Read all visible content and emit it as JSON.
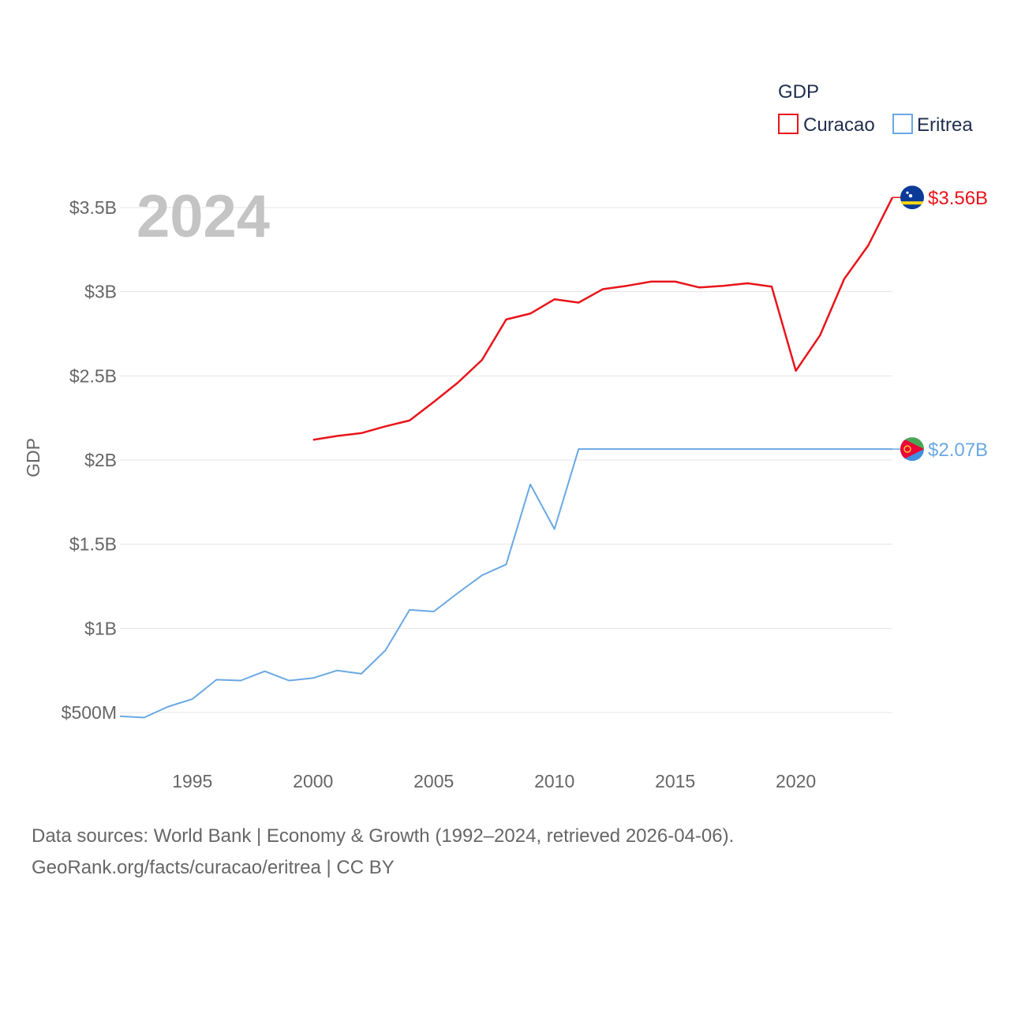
{
  "chart_data": {
    "type": "line",
    "year_label": "2024",
    "ylabel": "GDP",
    "xlabel": "",
    "legend": {
      "title": "GDP",
      "position": "top-right"
    },
    "xlim": [
      1992,
      2024
    ],
    "ylim": [
      350000000,
      3700000000
    ],
    "x_ticks": [
      1995,
      2000,
      2005,
      2010,
      2015,
      2020
    ],
    "x_tick_labels": [
      "1995",
      "2000",
      "2005",
      "2010",
      "2015",
      "2020"
    ],
    "y_ticks": [
      500000000,
      1000000000,
      1500000000,
      2000000000,
      2500000000,
      3000000000,
      3500000000
    ],
    "y_tick_labels": [
      "$500M",
      "$1B",
      "$1.5B",
      "$2B",
      "$2.5B",
      "$3B",
      "$3.5B"
    ],
    "grid": true,
    "series": [
      {
        "name": "Curacao",
        "color": "#e8141a",
        "end_label": "$3.56B",
        "flag_icon": "curacao-flag-icon",
        "x": [
          2000,
          2001,
          2002,
          2003,
          2004,
          2005,
          2006,
          2007,
          2008,
          2009,
          2010,
          2011,
          2012,
          2013,
          2014,
          2015,
          2016,
          2017,
          2018,
          2019,
          2020,
          2021,
          2022,
          2023,
          2024
        ],
        "values": [
          2120000000,
          2143000000,
          2160000000,
          2200000000,
          2235000000,
          2345000000,
          2460000000,
          2595000000,
          2835000000,
          2870000000,
          2955000000,
          2935000000,
          3015000000,
          3035000000,
          3060000000,
          3060000000,
          3025000000,
          3035000000,
          3050000000,
          3030000000,
          2530000000,
          2740000000,
          3075000000,
          3275000000,
          3560000000
        ]
      },
      {
        "name": "Eritrea",
        "color": "#6aa8e4",
        "end_label": "$2.07B",
        "flag_icon": "eritrea-flag-icon",
        "x": [
          1992,
          1993,
          1994,
          1995,
          1996,
          1997,
          1998,
          1999,
          2000,
          2001,
          2002,
          2003,
          2004,
          2005,
          2006,
          2007,
          2008,
          2009,
          2010,
          2011,
          2012,
          2013,
          2014,
          2015,
          2016,
          2017,
          2018,
          2019,
          2020,
          2021,
          2022,
          2023,
          2024
        ],
        "values": [
          478000000,
          470000000,
          535000000,
          580000000,
          695000000,
          690000000,
          745000000,
          690000000,
          705000000,
          750000000,
          730000000,
          870000000,
          1110000000,
          1100000000,
          1210000000,
          1315000000,
          1380000000,
          1855000000,
          1590000000,
          2065000000,
          2065000000,
          2065000000,
          2065000000,
          2065000000,
          2065000000,
          2065000000,
          2065000000,
          2065000000,
          2065000000,
          2065000000,
          2065000000,
          2065000000,
          2065000000
        ]
      }
    ]
  },
  "footer": {
    "line1": "Data sources: World Bank | Economy & Growth (1992–2024, retrieved 2026-04-06).",
    "line2": "GeoRank.org/facts/curacao/eritrea | CC BY"
  }
}
